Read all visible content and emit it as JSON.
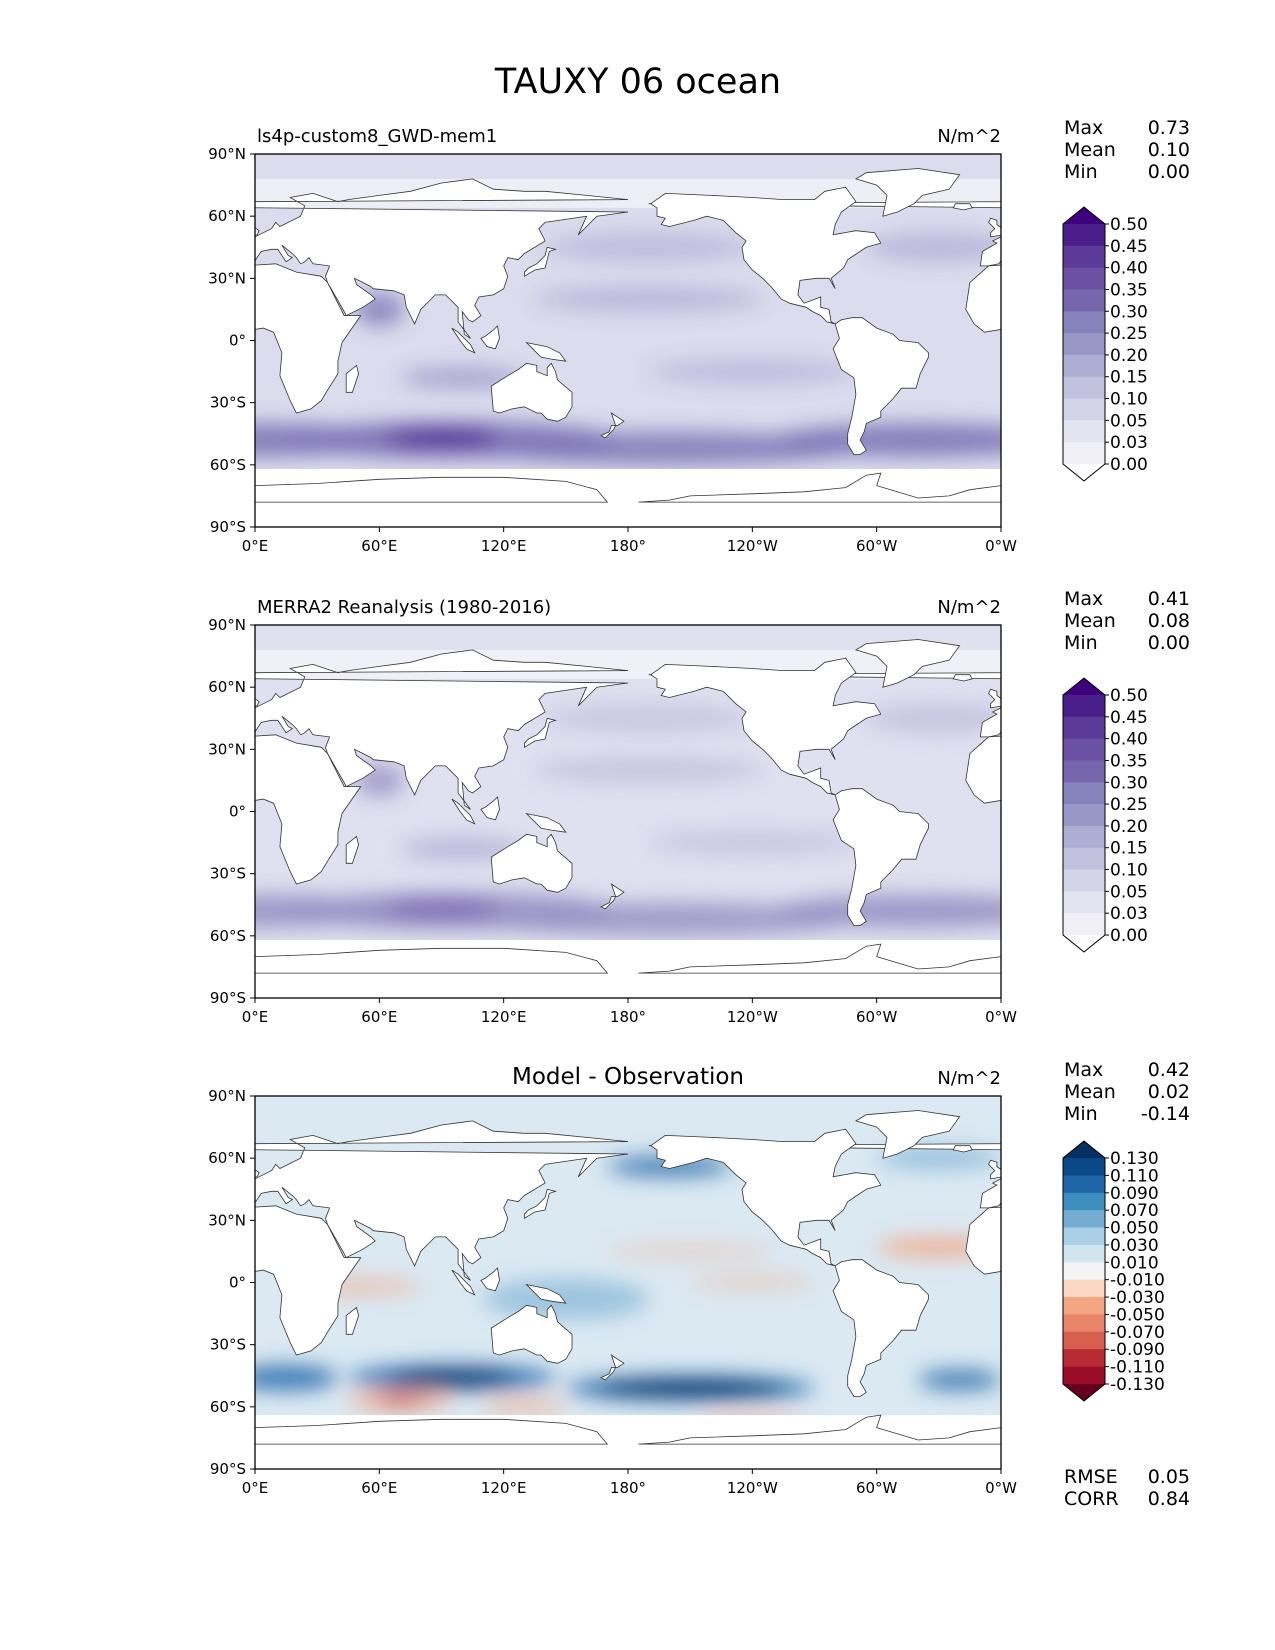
{
  "chart_data": {
    "type": "contour-map",
    "title": "TAUXY 06 ocean",
    "x_ticks": [
      "0°E",
      "60°E",
      "120°E",
      "180°",
      "120°W",
      "60°W",
      "0°W"
    ],
    "y_ticks": [
      "90°N",
      "60°N",
      "30°N",
      "0°",
      "30°S",
      "60°S",
      "90°S"
    ],
    "xlim": [
      0,
      360
    ],
    "ylim": [
      -90,
      90
    ],
    "panels": [
      {
        "title": "ls4p-custom8_GWD-mem1",
        "units": "N/m^2",
        "stats": [
          {
            "label": "Max",
            "value": "0.73"
          },
          {
            "label": "Mean",
            "value": "0.10"
          },
          {
            "label": "Min",
            "value": "0.00"
          }
        ],
        "colorbar": {
          "levels": [
            "0.00",
            "0.03",
            "0.05",
            "0.10",
            "0.15",
            "0.20",
            "0.25",
            "0.30",
            "0.35",
            "0.40",
            "0.45",
            "0.50"
          ],
          "colors": [
            "#fcfbfd",
            "#f0eff6",
            "#e4e3f0",
            "#d4d4e8",
            "#c2c2df",
            "#aeadd3",
            "#9a97c7",
            "#8682bc",
            "#7566ae",
            "#6a51a3",
            "#5b3a98",
            "#4a1f8c",
            "#3f007d"
          ],
          "extend": "both"
        },
        "colors": {
          "ocean": "#dcdcee",
          "band": "#7e74b6",
          "core": "#4f2c95"
        }
      },
      {
        "title": "MERRA2 Reanalysis (1980-2016)",
        "units": "N/m^2",
        "stats": [
          {
            "label": "Max",
            "value": "0.41"
          },
          {
            "label": "Mean",
            "value": "0.08"
          },
          {
            "label": "Min",
            "value": "0.00"
          }
        ],
        "colorbar": {
          "levels": [
            "0.00",
            "0.03",
            "0.05",
            "0.10",
            "0.15",
            "0.20",
            "0.25",
            "0.30",
            "0.35",
            "0.40",
            "0.45",
            "0.50"
          ],
          "colors": [
            "#fcfbfd",
            "#f0eff6",
            "#e4e3f0",
            "#d4d4e8",
            "#c2c2df",
            "#aeadd3",
            "#9a97c7",
            "#8682bc",
            "#7566ae",
            "#6a51a3",
            "#5b3a98",
            "#4a1f8c",
            "#3f007d"
          ],
          "extend": "both"
        },
        "colors": {
          "ocean": "#e0e0f0",
          "band": "#9890c4",
          "core": "#7a6ab2"
        }
      },
      {
        "title": "Model - Observation",
        "units": "N/m^2",
        "stats": [
          {
            "label": "Max",
            "value": "0.42"
          },
          {
            "label": "Mean",
            "value": "0.02"
          },
          {
            "label": "Min",
            "value": "-0.14"
          }
        ],
        "colorbar": {
          "levels": [
            "-0.130",
            "-0.110",
            "-0.090",
            "-0.070",
            "-0.050",
            "-0.030",
            "-0.010",
            "0.010",
            "0.030",
            "0.050",
            "0.070",
            "0.090",
            "0.110",
            "0.130"
          ],
          "colors": [
            "#67001f",
            "#980c27",
            "#b82b33",
            "#d6604d",
            "#e8846a",
            "#f4a582",
            "#fbd7c4",
            "#f4f4f4",
            "#d1e5f0",
            "#a9d0e6",
            "#74add1",
            "#3f8ec0",
            "#1f65a8",
            "#0b4888",
            "#053061"
          ],
          "extend": "both"
        },
        "colors": {
          "ocean": "#dbe9f3",
          "band": "#1f65a8",
          "core": "#053061",
          "neg": "#f4a582",
          "neg_core": "#d6604d"
        },
        "footer_stats": [
          {
            "label": "RMSE",
            "value": "0.05"
          },
          {
            "label": "CORR",
            "value": "0.84"
          }
        ]
      }
    ]
  }
}
